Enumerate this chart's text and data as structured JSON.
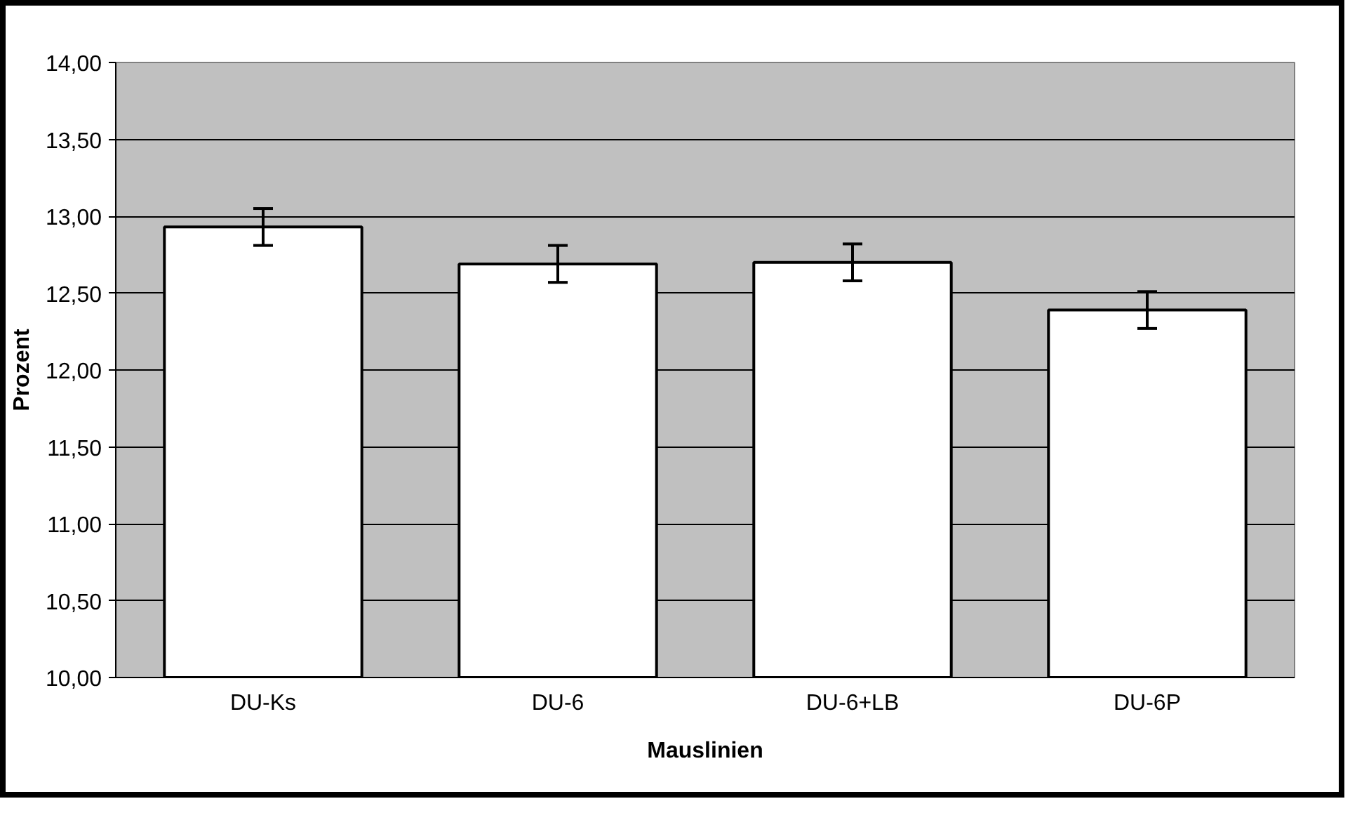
{
  "chart_data": {
    "type": "bar",
    "xlabel": "Mauslinien",
    "ylabel": "Prozent",
    "categories": [
      "DU-Ks",
      "DU-6",
      "DU-6+LB",
      "DU-6P"
    ],
    "values": [
      12.93,
      12.69,
      12.7,
      12.39
    ],
    "errors": [
      0.12,
      0.12,
      0.12,
      0.12
    ],
    "color": "#ffffff",
    "ylim": [
      10,
      14
    ],
    "yticks": [
      {
        "value": 10,
        "label": "10,00"
      },
      {
        "value": 10.5,
        "label": "10,50"
      },
      {
        "value": 11,
        "label": "11,00"
      },
      {
        "value": 11.5,
        "label": "11,50"
      },
      {
        "value": 12,
        "label": "12,00"
      },
      {
        "value": 12.5,
        "label": "12,50"
      },
      {
        "value": 13,
        "label": "13,00"
      },
      {
        "value": 13.5,
        "label": "13,50"
      },
      {
        "value": 14,
        "label": "14,00"
      }
    ],
    "grid": "y"
  }
}
